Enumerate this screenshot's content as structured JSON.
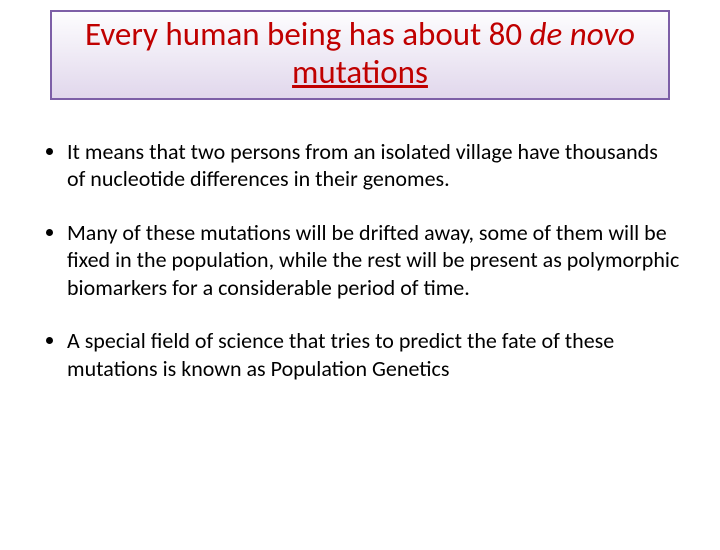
{
  "colors": {
    "title_color": "#c00000",
    "title_border": "#7d5fa7",
    "title_bg_top": "#fdfdfe",
    "title_bg_bottom": "#e1d7ec",
    "body_color": "#000000",
    "background": "#ffffff"
  },
  "title": {
    "segments": [
      {
        "text": "Every human being has about 80 ",
        "italic": false,
        "underline": false
      },
      {
        "text": "de novo",
        "italic": true,
        "underline": false
      },
      {
        "text": " ",
        "italic": false,
        "underline": false
      },
      {
        "text": "mutations",
        "italic": false,
        "underline": true
      }
    ],
    "fontsize": 33
  },
  "bullets": [
    {
      "text": "It means that two persons from an isolated village have thousands of nucleotide differences  in their genomes."
    },
    {
      "text": "Many of these mutations will be drifted away, some of them will be fixed in the population, while the rest will be present as polymorphic biomarkers for a considerable period of time."
    },
    {
      "text": "A special field of science that tries to predict the fate of these mutations is known as Population Genetics"
    }
  ],
  "body_fontsize": 22
}
